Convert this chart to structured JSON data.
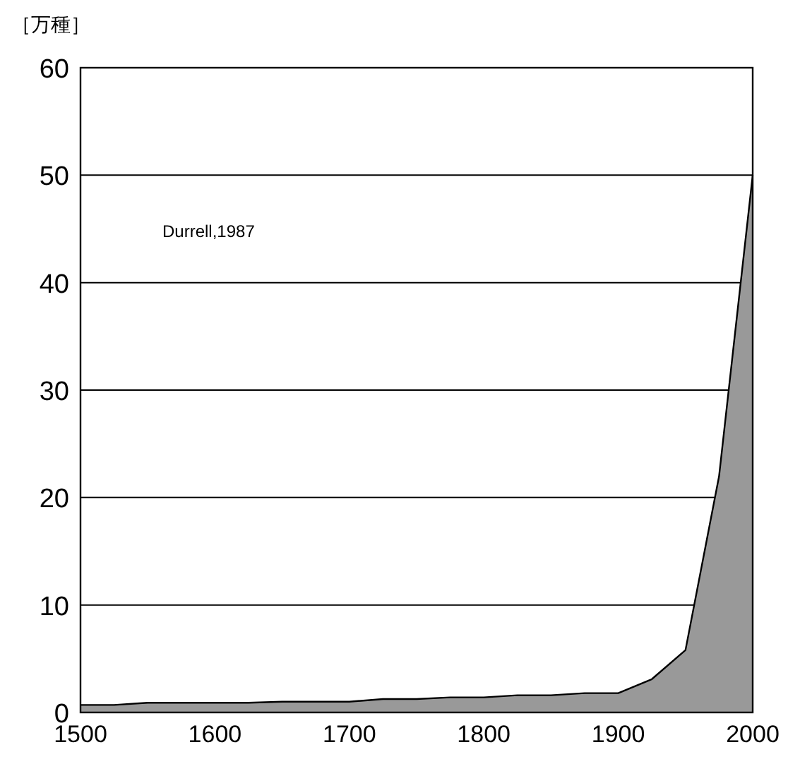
{
  "chart_data": {
    "type": "area",
    "ylabel": "［万種］",
    "annotations": [
      "Durrell,1987"
    ],
    "x": [
      1500,
      1525,
      1550,
      1575,
      1600,
      1625,
      1650,
      1675,
      1700,
      1725,
      1750,
      1775,
      1800,
      1825,
      1850,
      1875,
      1900,
      1925,
      1950,
      1975,
      2000
    ],
    "values": [
      0.7,
      0.7,
      0.9,
      0.9,
      0.9,
      0.9,
      1.0,
      1.0,
      1.0,
      1.25,
      1.25,
      1.4,
      1.4,
      1.6,
      1.6,
      1.8,
      1.8,
      3.1,
      5.8,
      22,
      50
    ],
    "color": "#999999",
    "xlim": [
      1500,
      2000
    ],
    "ylim": [
      0,
      60
    ],
    "xticks": [
      1500,
      1600,
      1700,
      1800,
      1900,
      2000
    ],
    "yticks": [
      0,
      10,
      20,
      30,
      40,
      50,
      60
    ],
    "grid": "y"
  }
}
